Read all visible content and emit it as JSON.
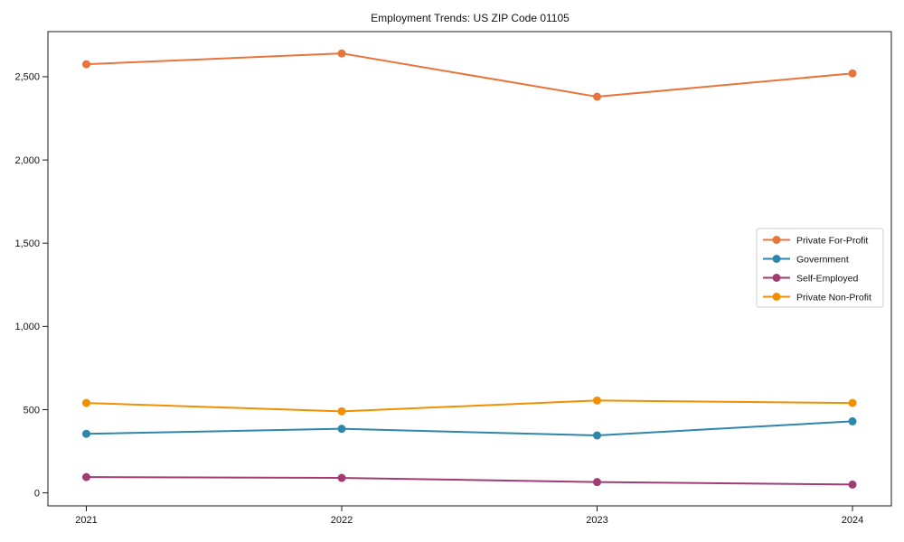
{
  "title": "Employment Trends: US ZIP Code 01105",
  "chart_data": {
    "type": "line",
    "title": "Employment Trends: US ZIP Code 01105",
    "x": [
      2021,
      2022,
      2023,
      2024
    ],
    "x_tick_labels": [
      "2021",
      "2022",
      "2023",
      "2024"
    ],
    "series": [
      {
        "name": "Private For-Profit",
        "color": "#E8743B",
        "values": [
          2575,
          2640,
          2380,
          2520
        ]
      },
      {
        "name": "Government",
        "color": "#2E86AB",
        "values": [
          355,
          385,
          345,
          430
        ]
      },
      {
        "name": "Self-Employed",
        "color": "#A23B72",
        "values": [
          95,
          90,
          65,
          50
        ]
      },
      {
        "name": "Private Non-Profit",
        "color": "#F18F01",
        "values": [
          540,
          490,
          555,
          540
        ]
      }
    ],
    "y_ticks": [
      {
        "value": 0,
        "label": "0"
      },
      {
        "value": 500,
        "label": "500"
      },
      {
        "value": 1000,
        "label": "1,000"
      },
      {
        "value": 1500,
        "label": "1,500"
      },
      {
        "value": 2000,
        "label": "2,000"
      },
      {
        "value": 2500,
        "label": "2,500"
      }
    ],
    "ylim": [
      -78,
      2771
    ],
    "grid": false,
    "legend_position": "right-center",
    "background": "#ffffff",
    "spine_color": "#1a1a1a",
    "legend_border_color": "#cccccc"
  }
}
